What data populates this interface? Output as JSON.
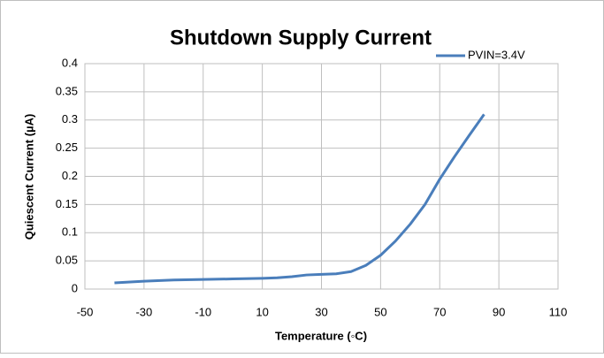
{
  "chart_data": {
    "type": "line",
    "title": "Shutdown Supply Current",
    "x_label": "Temperature (◦C)",
    "y_label": "Quiescent Current (µA)",
    "x": [
      -40,
      -30,
      -20,
      -10,
      0,
      10,
      15,
      20,
      25,
      30,
      35,
      40,
      45,
      50,
      55,
      60,
      65,
      70,
      75,
      80,
      85
    ],
    "series": [
      {
        "name": "PVIN=3.4V",
        "color": "#4a7ebb",
        "values": [
          0.011,
          0.014,
          0.016,
          0.017,
          0.018,
          0.019,
          0.02,
          0.022,
          0.025,
          0.026,
          0.027,
          0.031,
          0.042,
          0.06,
          0.085,
          0.115,
          0.15,
          0.195,
          0.235,
          0.273,
          0.31
        ]
      }
    ],
    "xlim": [
      -50,
      110
    ],
    "xticks": [
      -50,
      -30,
      -10,
      10,
      30,
      50,
      70,
      90,
      110
    ],
    "ylim": [
      0,
      0.4
    ],
    "yticks": [
      0,
      0.05,
      0.1,
      0.15,
      0.2,
      0.25,
      0.3,
      0.35,
      0.4
    ],
    "grid": true,
    "legend": "top-right"
  }
}
